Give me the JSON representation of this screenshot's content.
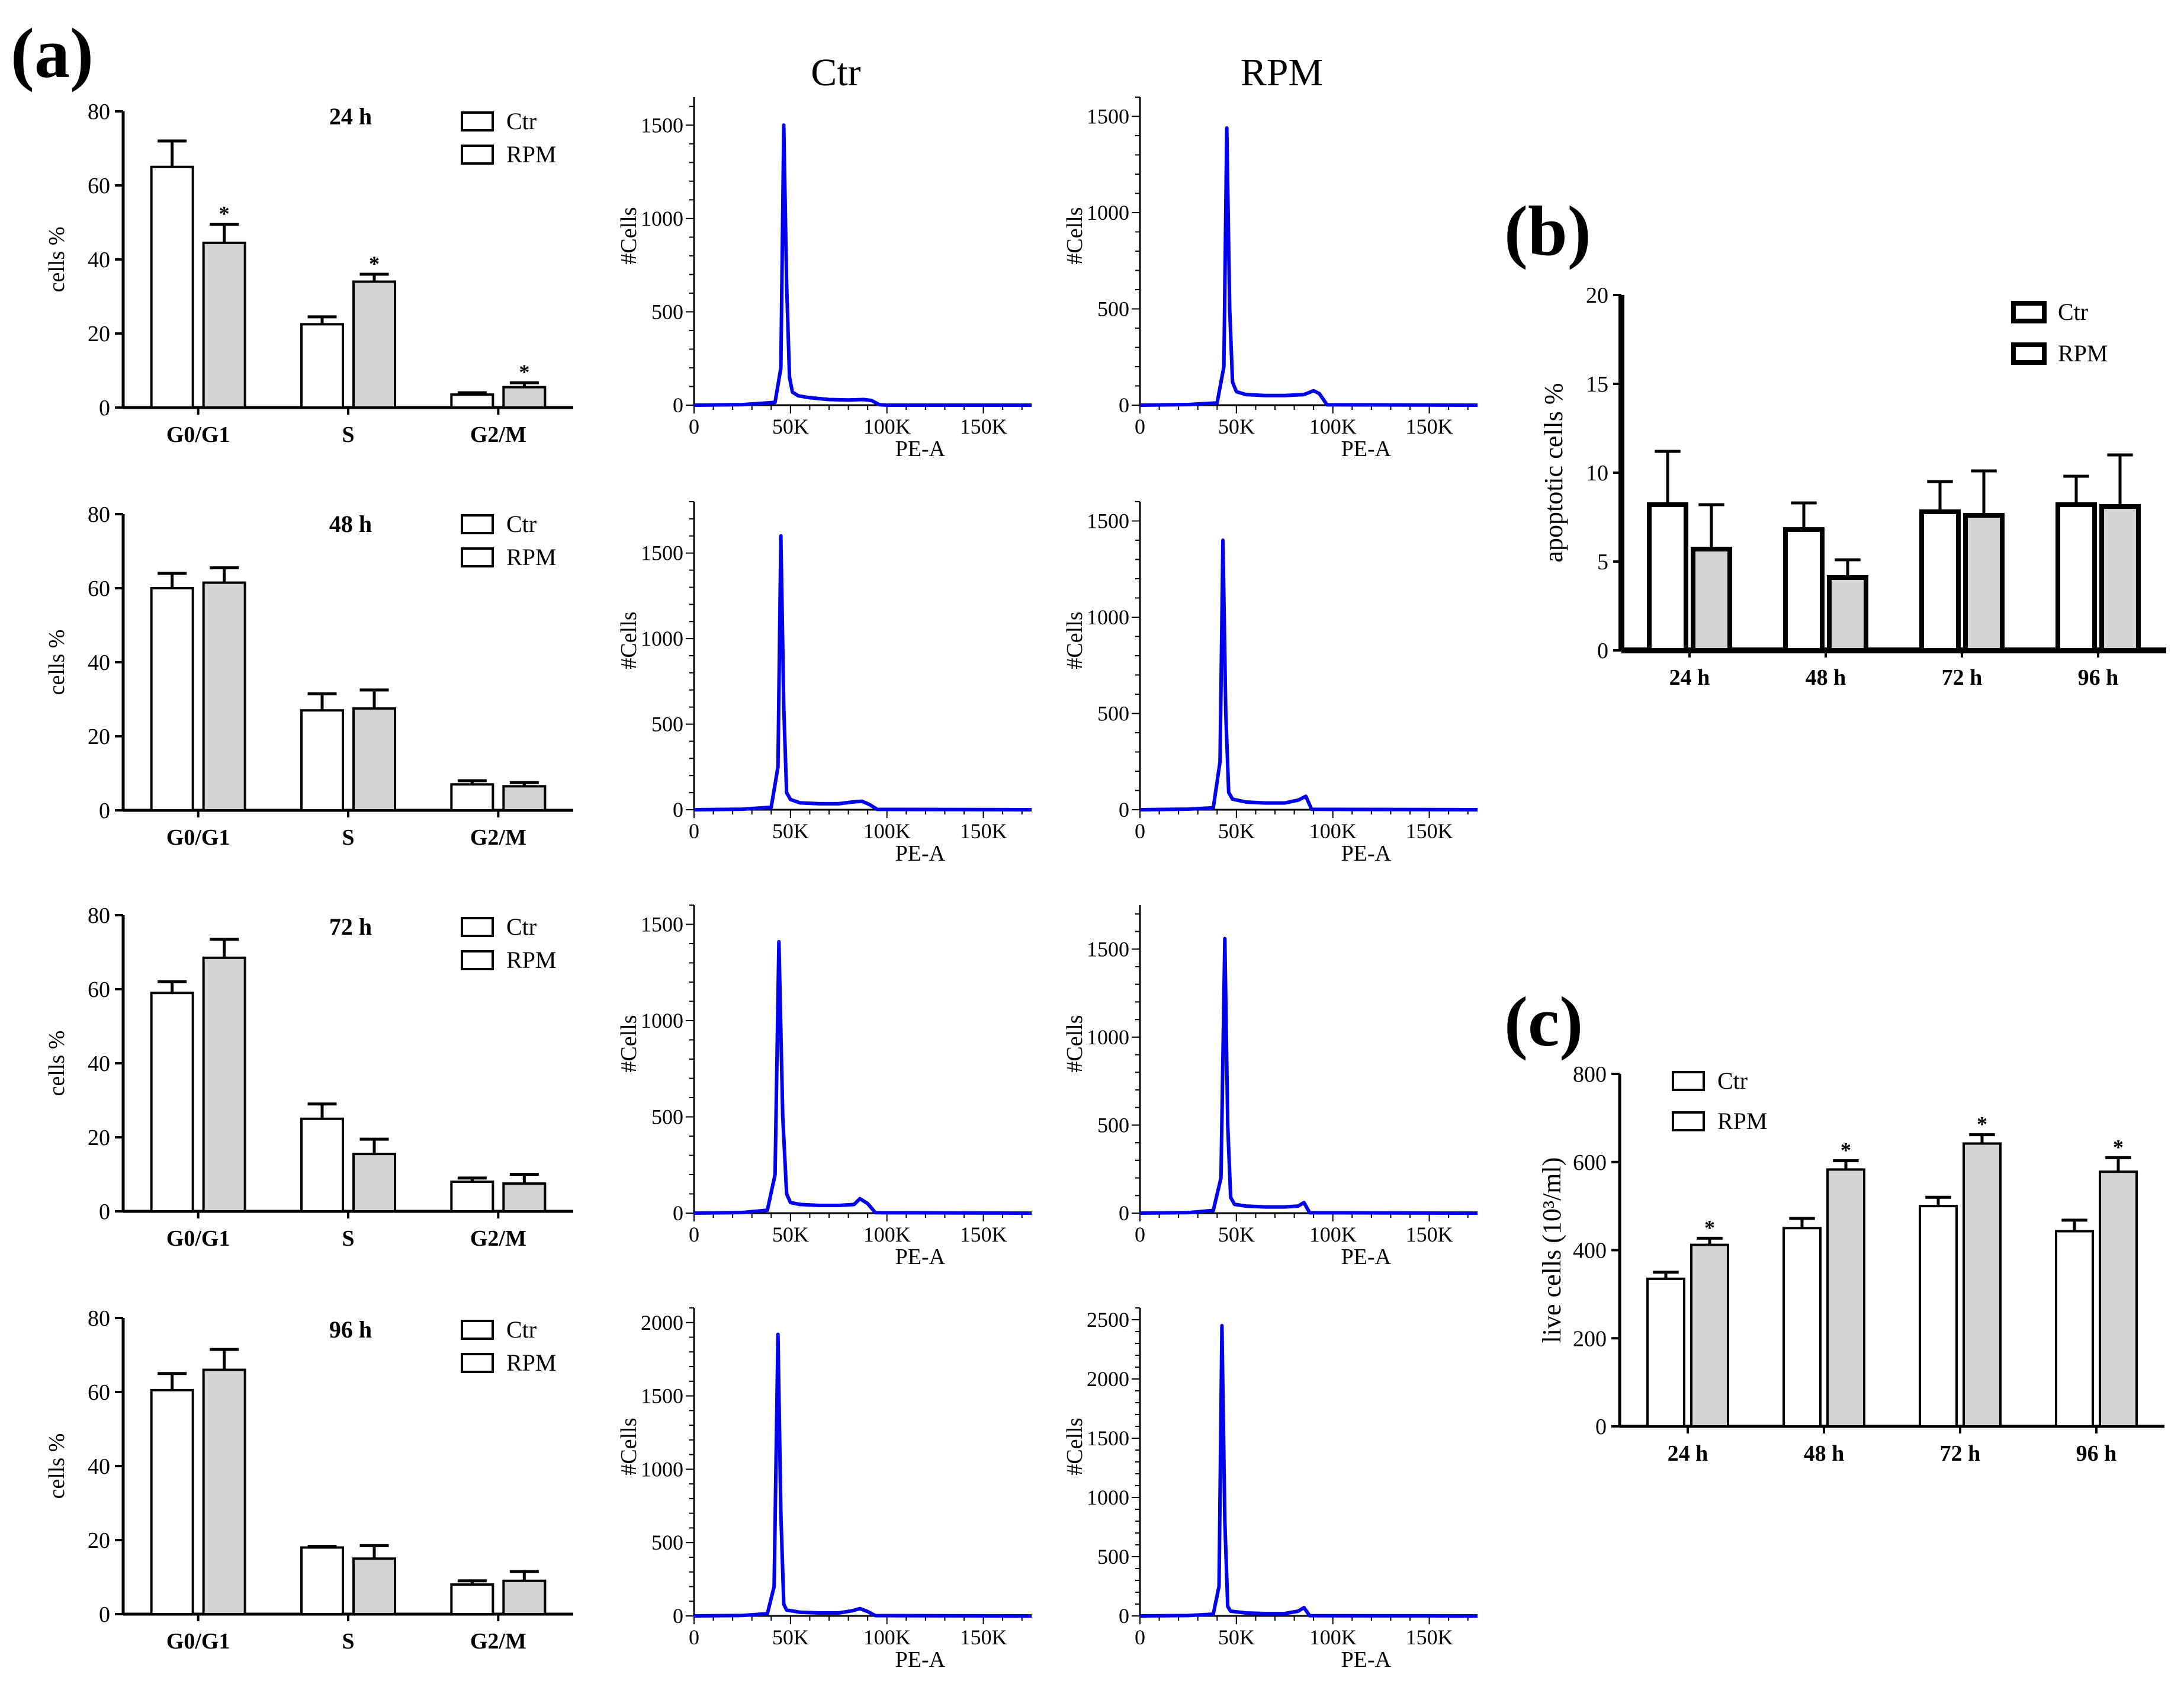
{
  "panel_labels": {
    "a": "(a)",
    "b": "(b)",
    "c": "(c)"
  },
  "colors": {
    "ctr_fill": "#ffffff",
    "rpm_fill": "#d3d3d3",
    "histogram": "#0000ee",
    "axis": "#000000"
  },
  "chart_data": [
    {
      "id": "a1",
      "type": "bar",
      "title": "24 h",
      "ylabel": "cells %",
      "categories": [
        "G0/G1",
        "S",
        "G2/M"
      ],
      "ylim": [
        0,
        80
      ],
      "yticks": [
        0,
        20,
        40,
        60,
        80
      ],
      "legend": [
        "Ctr",
        "RPM"
      ],
      "series": [
        {
          "name": "Ctr",
          "values": [
            65,
            22.5,
            3.5
          ],
          "errors": [
            7,
            2,
            0.5
          ],
          "sig": [
            false,
            false,
            false
          ]
        },
        {
          "name": "RPM",
          "values": [
            44.5,
            34,
            5.5
          ],
          "errors": [
            5,
            2,
            1.2
          ],
          "sig": [
            true,
            true,
            true
          ]
        }
      ],
      "sig_mark": "*"
    },
    {
      "id": "a2",
      "type": "bar",
      "title": "48 h",
      "ylabel": "cells %",
      "categories": [
        "G0/G1",
        "S",
        "G2/M"
      ],
      "ylim": [
        0,
        80
      ],
      "yticks": [
        0,
        20,
        40,
        60,
        80
      ],
      "legend": [
        "Ctr",
        "RPM"
      ],
      "series": [
        {
          "name": "Ctr",
          "values": [
            60,
            27,
            7
          ],
          "errors": [
            4,
            4.5,
            1
          ],
          "sig": [
            false,
            false,
            false
          ]
        },
        {
          "name": "RPM",
          "values": [
            61.5,
            27.5,
            6.5
          ],
          "errors": [
            4,
            5,
            1
          ],
          "sig": [
            false,
            false,
            false
          ]
        }
      ],
      "sig_mark": "*"
    },
    {
      "id": "a3",
      "type": "bar",
      "title": "72 h",
      "ylabel": "cells %",
      "categories": [
        "G0/G1",
        "S",
        "G2/M"
      ],
      "ylim": [
        0,
        80
      ],
      "yticks": [
        0,
        20,
        40,
        60,
        80
      ],
      "legend": [
        "Ctr",
        "RPM"
      ],
      "series": [
        {
          "name": "Ctr",
          "values": [
            59,
            25,
            8
          ],
          "errors": [
            3,
            4,
            1
          ],
          "sig": [
            false,
            false,
            false
          ]
        },
        {
          "name": "RPM",
          "values": [
            68.5,
            15.5,
            7.5
          ],
          "errors": [
            5,
            4,
            2.5
          ],
          "sig": [
            false,
            false,
            false
          ]
        }
      ],
      "sig_mark": "*"
    },
    {
      "id": "a4",
      "type": "bar",
      "title": "96 h",
      "ylabel": "cells %",
      "categories": [
        "G0/G1",
        "S",
        "G2/M"
      ],
      "ylim": [
        0,
        80
      ],
      "yticks": [
        0,
        20,
        40,
        60,
        80
      ],
      "legend": [
        "Ctr",
        "RPM"
      ],
      "series": [
        {
          "name": "Ctr",
          "values": [
            60.5,
            18,
            8
          ],
          "errors": [
            4.5,
            0.3,
            1
          ],
          "sig": [
            false,
            false,
            false
          ]
        },
        {
          "name": "RPM",
          "values": [
            66,
            15,
            9
          ],
          "errors": [
            5.5,
            3.5,
            2.5
          ],
          "sig": [
            false,
            false,
            false
          ]
        }
      ],
      "sig_mark": "*"
    },
    {
      "id": "h1",
      "type": "line",
      "title": "Ctr",
      "xlabel": "PE-A",
      "ylabel": "#Cells",
      "xlim": [
        0,
        175000
      ],
      "ylim": [
        0,
        1650
      ],
      "xticks": [
        0,
        50000,
        100000,
        150000
      ],
      "xticklabels": [
        "0",
        "50K",
        "100K",
        "150K"
      ],
      "yticks": [
        0,
        500,
        1000,
        1500
      ],
      "yticklabels": [
        "0",
        "500",
        "1000",
        "1500"
      ],
      "x": [
        0,
        25000,
        42000,
        45000,
        46500,
        48000,
        49500,
        51000,
        54000,
        60000,
        70000,
        80000,
        88000,
        92000,
        96000,
        100000,
        175000
      ],
      "y": [
        0,
        3,
        15,
        200,
        1500,
        650,
        150,
        70,
        50,
        40,
        30,
        28,
        30,
        25,
        3,
        0,
        0
      ]
    },
    {
      "id": "h2",
      "type": "line",
      "title": "RPM",
      "xlabel": "PE-A",
      "ylabel": "#Cells",
      "xlim": [
        0,
        175000
      ],
      "ylim": [
        0,
        1600
      ],
      "xticks": [
        0,
        50000,
        100000,
        150000
      ],
      "xticklabels": [
        "0",
        "50K",
        "100K",
        "150K"
      ],
      "yticks": [
        0,
        500,
        1000,
        1500
      ],
      "yticklabels": [
        "0",
        "500",
        "1000",
        "1500"
      ],
      "x": [
        0,
        25000,
        40000,
        43500,
        45000,
        46500,
        48000,
        50000,
        55000,
        65000,
        75000,
        85000,
        90000,
        93000,
        97000,
        175000
      ],
      "y": [
        0,
        3,
        12,
        200,
        1440,
        500,
        120,
        70,
        55,
        50,
        50,
        55,
        75,
        60,
        2,
        0
      ]
    },
    {
      "id": "h3",
      "type": "line",
      "title": "",
      "xlabel": "PE-A",
      "ylabel": "#Cells",
      "xlim": [
        0,
        175000
      ],
      "ylim": [
        0,
        1800
      ],
      "xticks": [
        0,
        50000,
        100000,
        150000
      ],
      "xticklabels": [
        "0",
        "50K",
        "100K",
        "150K"
      ],
      "yticks": [
        0,
        500,
        1000,
        1500
      ],
      "yticklabels": [
        "0",
        "500",
        "1000",
        "1500"
      ],
      "x": [
        0,
        25000,
        40000,
        43500,
        45000,
        46500,
        48000,
        50000,
        55000,
        65000,
        75000,
        82000,
        87000,
        91000,
        95000,
        175000
      ],
      "y": [
        0,
        3,
        15,
        250,
        1600,
        600,
        100,
        60,
        40,
        35,
        35,
        45,
        50,
        30,
        2,
        0
      ]
    },
    {
      "id": "h4",
      "type": "line",
      "title": "",
      "xlabel": "PE-A",
      "ylabel": "#Cells",
      "xlim": [
        0,
        175000
      ],
      "ylim": [
        0,
        1600
      ],
      "xticks": [
        0,
        50000,
        100000,
        150000
      ],
      "xticklabels": [
        "0",
        "50K",
        "100K",
        "150K"
      ],
      "yticks": [
        0,
        500,
        1000,
        1500
      ],
      "yticklabels": [
        "0",
        "500",
        "1000",
        "1500"
      ],
      "x": [
        0,
        25000,
        38000,
        41500,
        43000,
        44500,
        46000,
        48000,
        55000,
        65000,
        75000,
        82000,
        86000,
        89000,
        175000
      ],
      "y": [
        0,
        3,
        10,
        250,
        1400,
        500,
        90,
        55,
        40,
        35,
        35,
        50,
        70,
        2,
        0
      ]
    },
    {
      "id": "h5",
      "type": "line",
      "title": "",
      "xlabel": "PE-A",
      "ylabel": "#Cells",
      "xlim": [
        0,
        175000
      ],
      "ylim": [
        0,
        1600
      ],
      "xticks": [
        0,
        50000,
        100000,
        150000
      ],
      "xticklabels": [
        "0",
        "50K",
        "100K",
        "150K"
      ],
      "yticks": [
        0,
        500,
        1000,
        1500
      ],
      "yticklabels": [
        "0",
        "500",
        "1000",
        "1500"
      ],
      "x": [
        0,
        25000,
        38000,
        42000,
        44000,
        46000,
        48000,
        50000,
        55000,
        65000,
        75000,
        83000,
        86000,
        90000,
        94000,
        175000
      ],
      "y": [
        0,
        3,
        15,
        200,
        1410,
        500,
        100,
        55,
        45,
        40,
        40,
        45,
        75,
        50,
        2,
        0
      ]
    },
    {
      "id": "h6",
      "type": "line",
      "title": "",
      "xlabel": "PE-A",
      "ylabel": "#Cells",
      "xlim": [
        0,
        175000
      ],
      "ylim": [
        0,
        1750
      ],
      "xticks": [
        0,
        50000,
        100000,
        150000
      ],
      "xticklabels": [
        "0",
        "50K",
        "100K",
        "150K"
      ],
      "yticks": [
        0,
        500,
        1000,
        1500
      ],
      "yticklabels": [
        "0",
        "500",
        "1000",
        "1500"
      ],
      "x": [
        0,
        25000,
        38000,
        42000,
        44000,
        45500,
        47000,
        49000,
        55000,
        65000,
        75000,
        82000,
        85000,
        88000,
        175000
      ],
      "y": [
        0,
        3,
        15,
        200,
        1560,
        500,
        90,
        50,
        40,
        35,
        35,
        40,
        60,
        2,
        0
      ]
    },
    {
      "id": "h7",
      "type": "line",
      "title": "",
      "xlabel": "PE-A",
      "ylabel": "#Cells",
      "xlim": [
        0,
        175000
      ],
      "ylim": [
        0,
        2100
      ],
      "xticks": [
        0,
        50000,
        100000,
        150000
      ],
      "xticklabels": [
        "0",
        "50K",
        "100K",
        "150K"
      ],
      "yticks": [
        0,
        500,
        1000,
        1500,
        2000
      ],
      "yticklabels": [
        "0",
        "500",
        "1000",
        "1500",
        "2000"
      ],
      "x": [
        0,
        25000,
        38000,
        41500,
        43500,
        45000,
        46500,
        48000,
        55000,
        65000,
        75000,
        82000,
        86000,
        90000,
        94000,
        175000
      ],
      "y": [
        0,
        3,
        15,
        200,
        1920,
        700,
        80,
        40,
        25,
        20,
        20,
        35,
        50,
        30,
        2,
        0
      ]
    },
    {
      "id": "h8",
      "type": "line",
      "title": "",
      "xlabel": "PE-A",
      "ylabel": "#Cells",
      "xlim": [
        0,
        175000
      ],
      "ylim": [
        0,
        2600
      ],
      "xticks": [
        0,
        50000,
        100000,
        150000
      ],
      "xticklabels": [
        "0",
        "50K",
        "100K",
        "150K"
      ],
      "yticks": [
        0,
        500,
        1000,
        1500,
        2000,
        2500
      ],
      "yticklabels": [
        "0",
        "500",
        "1000",
        "1500",
        "2000",
        "2500"
      ],
      "x": [
        0,
        25000,
        38000,
        41000,
        42500,
        44000,
        45500,
        47000,
        55000,
        65000,
        75000,
        82000,
        85000,
        88000,
        175000
      ],
      "y": [
        0,
        3,
        15,
        250,
        2450,
        800,
        80,
        40,
        25,
        20,
        20,
        40,
        70,
        2,
        0
      ]
    },
    {
      "id": "b",
      "type": "bar",
      "title": "",
      "ylabel": "apoptotic cells %",
      "categories": [
        "24 h",
        "48 h",
        "72 h",
        "96 h"
      ],
      "ylim": [
        0,
        20
      ],
      "yticks": [
        0,
        5,
        10,
        15,
        20
      ],
      "legend": [
        "Ctr",
        "RPM"
      ],
      "series": [
        {
          "name": "Ctr",
          "values": [
            8.2,
            6.8,
            7.8,
            8.2
          ],
          "errors": [
            3,
            1.5,
            1.7,
            1.6
          ],
          "sig": [
            false,
            false,
            false,
            false
          ]
        },
        {
          "name": "RPM",
          "values": [
            5.7,
            4.1,
            7.6,
            8.1
          ],
          "errors": [
            2.5,
            1,
            2.5,
            2.9
          ],
          "sig": [
            false,
            false,
            false,
            false
          ]
        }
      ],
      "sig_mark": "*"
    },
    {
      "id": "c",
      "type": "bar",
      "title": "",
      "ylabel": "live cells (10³/ml)",
      "categories": [
        "24 h",
        "48 h",
        "72 h",
        "96 h"
      ],
      "ylim": [
        0,
        800
      ],
      "yticks": [
        0,
        200,
        400,
        600,
        800
      ],
      "legend": [
        "Ctr",
        "RPM"
      ],
      "series": [
        {
          "name": "Ctr",
          "values": [
            335,
            450,
            500,
            443
          ],
          "errors": [
            15,
            22,
            20,
            25
          ],
          "sig": [
            false,
            false,
            false,
            false
          ]
        },
        {
          "name": "RPM",
          "values": [
            412,
            583,
            642,
            578
          ],
          "errors": [
            15,
            20,
            20,
            32
          ],
          "sig": [
            true,
            true,
            true,
            true
          ]
        }
      ],
      "sig_mark": "*"
    }
  ]
}
